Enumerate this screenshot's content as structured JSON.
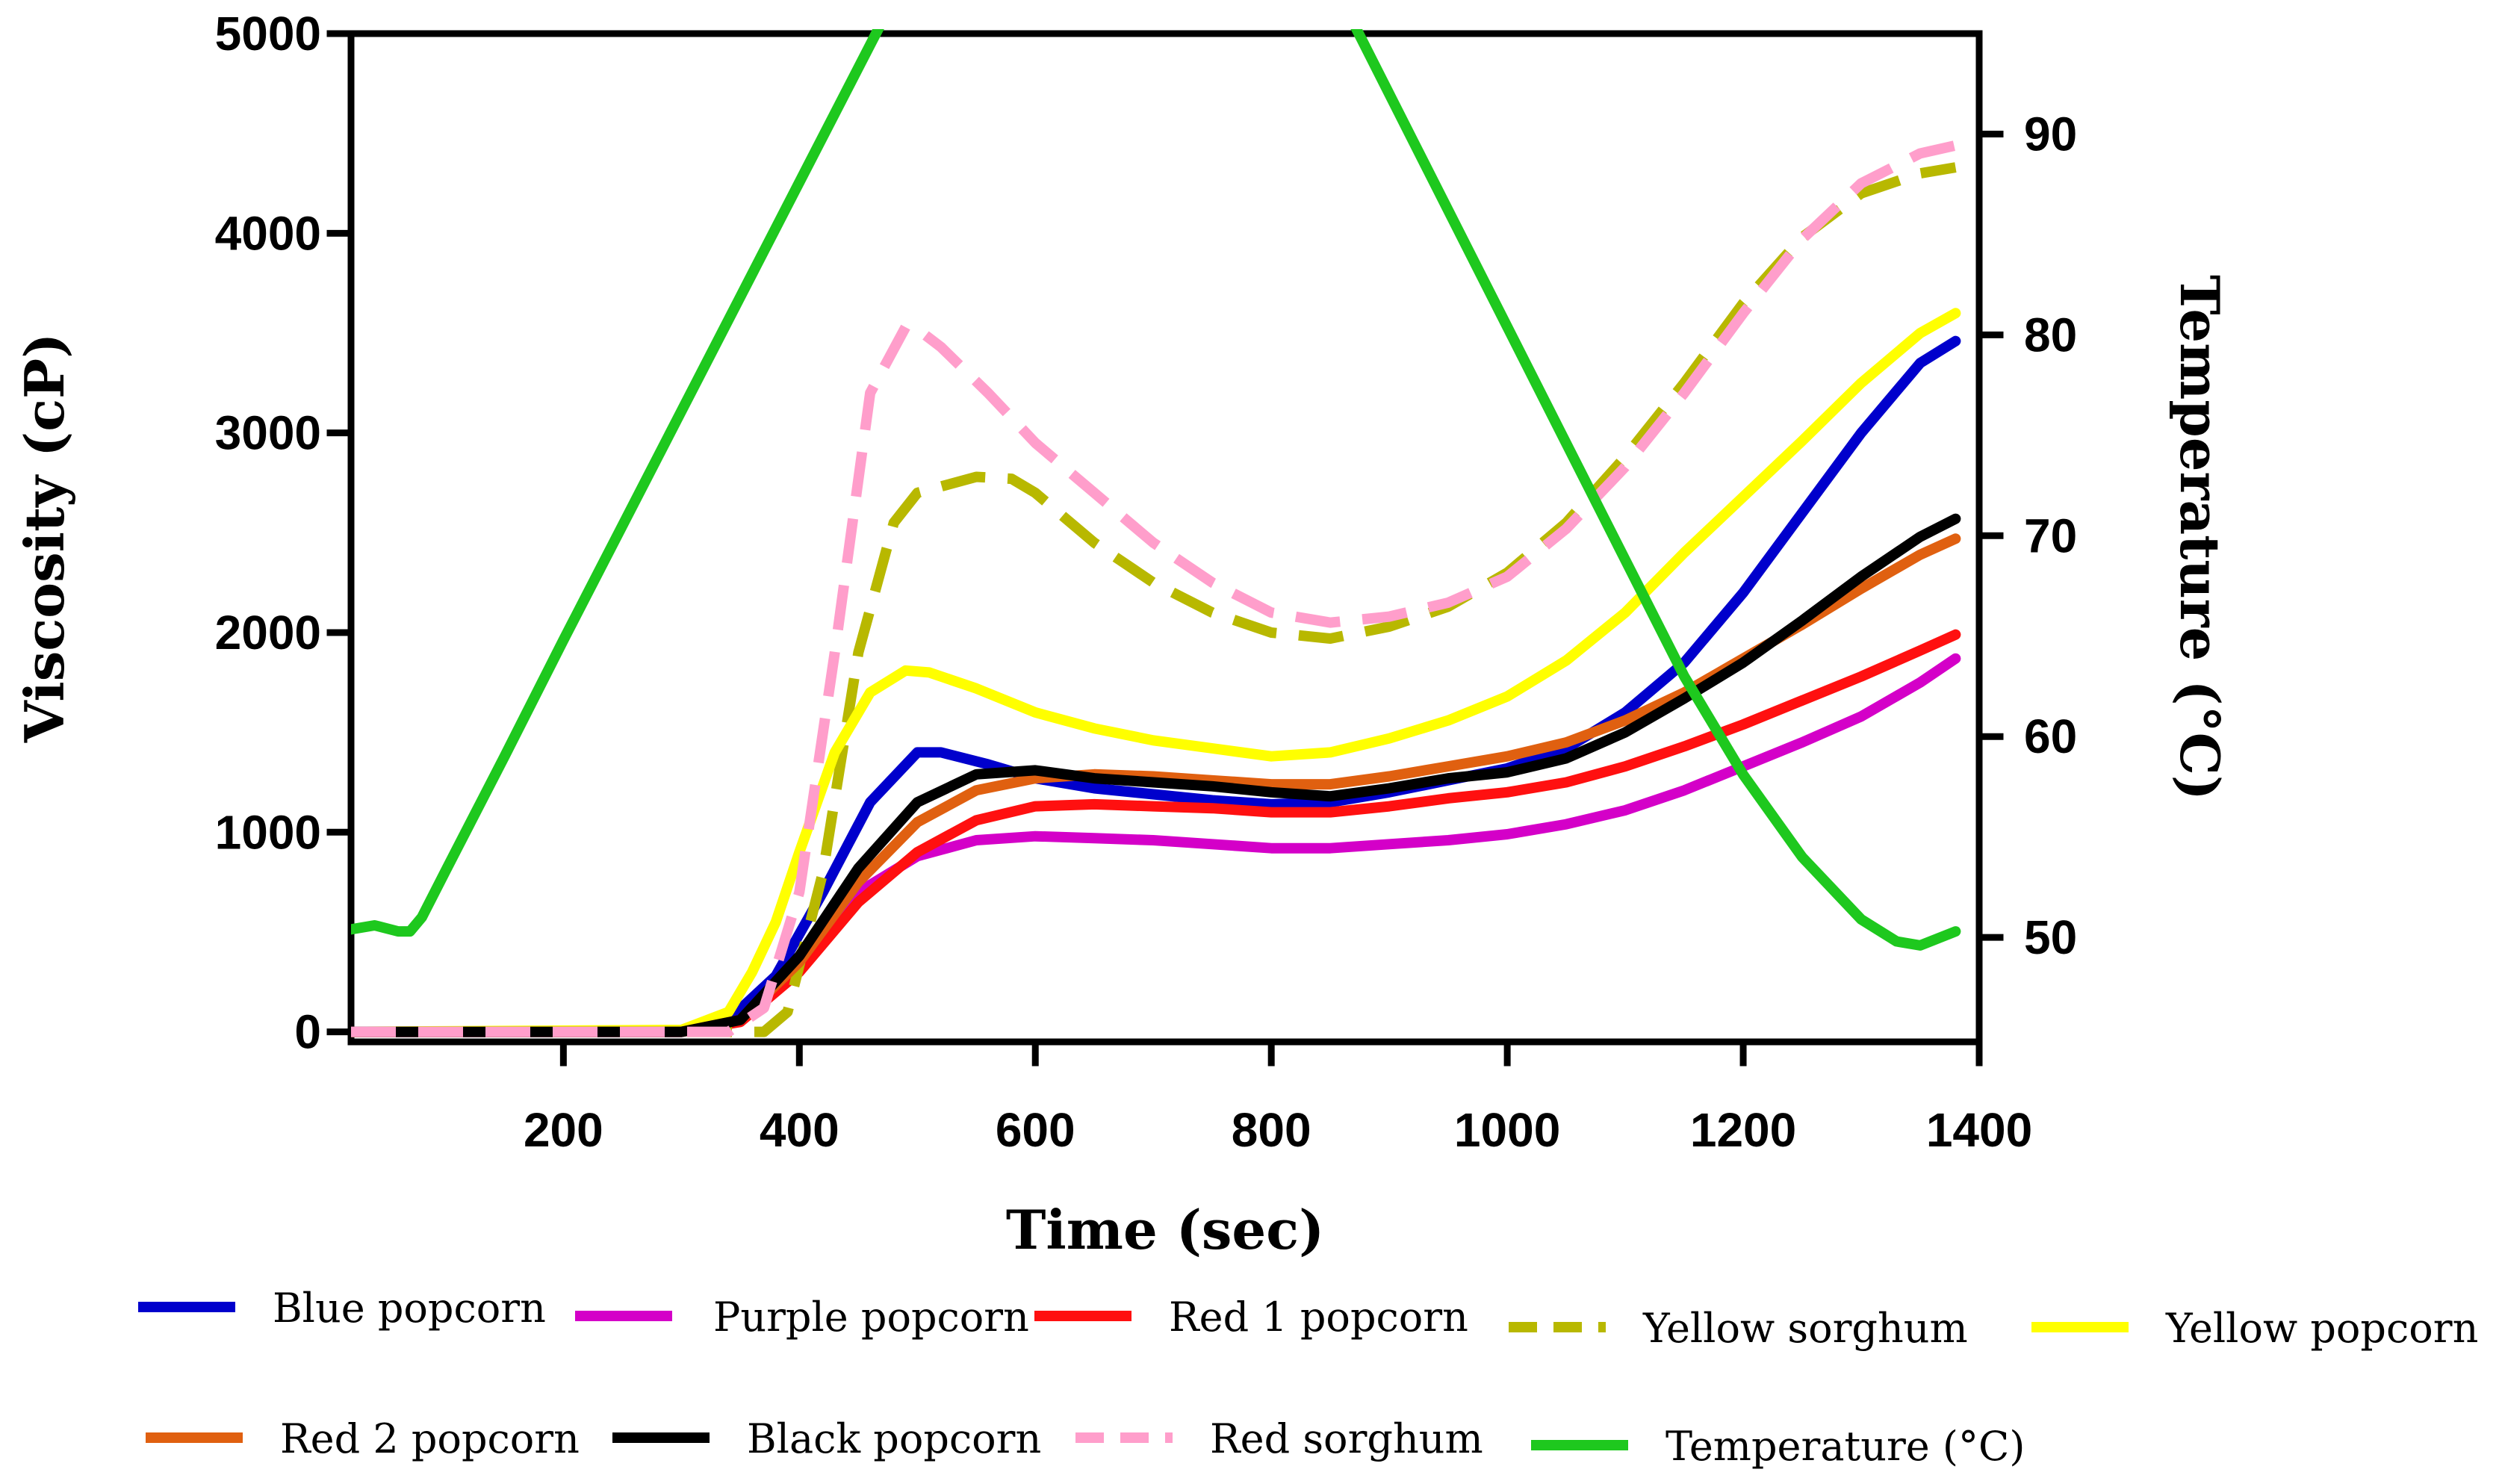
{
  "chart_data": {
    "type": "line",
    "xlabel": "Time (sec)",
    "ylabel": "Viscosity (cP)",
    "y2label": "Temperature (°C)",
    "xlim": [
      20,
      1400
    ],
    "ylim": [
      -50,
      5000
    ],
    "y2lim": [
      44.8,
      95
    ],
    "xticks": [
      200,
      400,
      600,
      800,
      1000,
      1200,
      1400
    ],
    "yticks": [
      0,
      1000,
      2000,
      3000,
      4000,
      5000
    ],
    "y2ticks": [
      50,
      60,
      70,
      80,
      90
    ],
    "grid": false,
    "legend_position": "bottom",
    "series": [
      {
        "name": "Blue popcorn",
        "axis": "left",
        "color": "#0000cc",
        "dash": "solid",
        "x": [
          20,
          300,
          340,
          380,
          420,
          460,
          500,
          520,
          560,
          600,
          650,
          700,
          750,
          800,
          850,
          900,
          950,
          1000,
          1050,
          1100,
          1150,
          1200,
          1250,
          1300,
          1350,
          1380
        ],
        "y": [
          0,
          0,
          60,
          280,
          700,
          1150,
          1400,
          1400,
          1340,
          1270,
          1220,
          1190,
          1160,
          1140,
          1150,
          1200,
          1260,
          1320,
          1420,
          1600,
          1850,
          2200,
          2600,
          3000,
          3350,
          3460
        ]
      },
      {
        "name": "Purple popcorn",
        "axis": "left",
        "color": "#d400c8",
        "dash": "solid",
        "x": [
          20,
          300,
          350,
          400,
          450,
          500,
          550,
          600,
          650,
          700,
          750,
          800,
          850,
          900,
          950,
          1000,
          1050,
          1100,
          1150,
          1200,
          1250,
          1300,
          1350,
          1380
        ],
        "y": [
          0,
          0,
          60,
          350,
          700,
          880,
          960,
          980,
          970,
          960,
          940,
          920,
          920,
          940,
          960,
          990,
          1040,
          1110,
          1210,
          1330,
          1450,
          1580,
          1750,
          1870
        ]
      },
      {
        "name": "Red 1 popcorn",
        "axis": "left",
        "color": "#ff1010",
        "dash": "solid",
        "x": [
          20,
          300,
          350,
          400,
          450,
          500,
          550,
          600,
          650,
          700,
          750,
          800,
          850,
          900,
          950,
          1000,
          1050,
          1100,
          1150,
          1200,
          1250,
          1300,
          1350,
          1380
        ],
        "y": [
          0,
          0,
          50,
          300,
          650,
          900,
          1060,
          1130,
          1140,
          1130,
          1120,
          1100,
          1100,
          1130,
          1170,
          1200,
          1250,
          1330,
          1430,
          1540,
          1660,
          1780,
          1910,
          1990
        ]
      },
      {
        "name": "Yellow sorghum",
        "axis": "left",
        "color": "#b8b800",
        "dash": "dashed",
        "x": [
          20,
          300,
          370,
          390,
          420,
          450,
          480,
          500,
          550,
          580,
          600,
          650,
          700,
          750,
          800,
          850,
          900,
          950,
          1000,
          1050,
          1100,
          1150,
          1200,
          1250,
          1300,
          1350,
          1380
        ],
        "y": [
          0,
          0,
          0,
          100,
          800,
          1900,
          2550,
          2700,
          2780,
          2770,
          2700,
          2450,
          2250,
          2100,
          2000,
          1970,
          2030,
          2130,
          2300,
          2550,
          2880,
          3250,
          3650,
          3980,
          4200,
          4300,
          4330
        ]
      },
      {
        "name": "Yellow popcorn",
        "axis": "left",
        "color": "#ffff00",
        "dash": "solid",
        "x": [
          20,
          300,
          340,
          360,
          380,
          400,
          430,
          460,
          490,
          510,
          550,
          600,
          650,
          700,
          750,
          800,
          850,
          900,
          950,
          1000,
          1050,
          1100,
          1150,
          1200,
          1250,
          1300,
          1350,
          1380
        ],
        "y": [
          0,
          10,
          100,
          300,
          550,
          900,
          1400,
          1700,
          1810,
          1800,
          1720,
          1600,
          1520,
          1460,
          1420,
          1380,
          1400,
          1470,
          1560,
          1680,
          1860,
          2100,
          2400,
          2680,
          2960,
          3250,
          3500,
          3600
        ]
      },
      {
        "name": "Red 2 popcorn",
        "axis": "left",
        "color": "#e06010",
        "dash": "solid",
        "x": [
          20,
          300,
          350,
          400,
          450,
          500,
          550,
          600,
          650,
          700,
          750,
          800,
          850,
          900,
          950,
          1000,
          1050,
          1100,
          1150,
          1200,
          1250,
          1300,
          1350,
          1380
        ],
        "y": [
          0,
          0,
          60,
          350,
          750,
          1050,
          1210,
          1270,
          1290,
          1280,
          1260,
          1240,
          1240,
          1280,
          1330,
          1380,
          1450,
          1560,
          1700,
          1870,
          2040,
          2220,
          2390,
          2470
        ]
      },
      {
        "name": "Black popcorn",
        "axis": "left",
        "color": "#000000",
        "dash": "solid",
        "x": [
          20,
          300,
          350,
          400,
          450,
          500,
          550,
          600,
          650,
          700,
          750,
          800,
          850,
          900,
          950,
          1000,
          1050,
          1100,
          1150,
          1200,
          1250,
          1300,
          1350,
          1380
        ],
        "y": [
          0,
          0,
          60,
          380,
          820,
          1150,
          1290,
          1310,
          1270,
          1250,
          1230,
          1200,
          1180,
          1220,
          1270,
          1300,
          1370,
          1500,
          1670,
          1850,
          2060,
          2280,
          2480,
          2570
        ]
      },
      {
        "name": "Red sorghum",
        "axis": "left",
        "color": "#ff9ecb",
        "dash": "dashed",
        "x": [
          20,
          300,
          340,
          370,
          400,
          430,
          460,
          490,
          500,
          520,
          560,
          600,
          650,
          700,
          750,
          800,
          850,
          900,
          950,
          1000,
          1050,
          1100,
          1150,
          1200,
          1250,
          1300,
          1350,
          1380
        ],
        "y": [
          0,
          0,
          0,
          120,
          700,
          1900,
          3200,
          3530,
          3520,
          3430,
          3200,
          2950,
          2700,
          2450,
          2250,
          2100,
          2050,
          2080,
          2150,
          2280,
          2520,
          2830,
          3200,
          3600,
          3970,
          4250,
          4400,
          4440
        ]
      },
      {
        "name": "Temperature (°C)",
        "axis": "right",
        "color": "#1ec81e",
        "dash": "solid",
        "x": [
          20,
          40,
          60,
          70,
          80,
          100,
          150,
          200,
          250,
          300,
          350,
          400,
          450,
          500,
          510,
          520,
          600,
          700,
          800,
          820,
          850,
          900,
          950,
          1000,
          1050,
          1100,
          1150,
          1200,
          1250,
          1300,
          1330,
          1350,
          1380
        ],
        "y": [
          50.4,
          50.6,
          50.3,
          50.3,
          51.0,
          53.3,
          59.0,
          64.8,
          70.5,
          76.2,
          81.9,
          87.6,
          93.3,
          99.0,
          100.2,
          99.8,
          100.0,
          100.0,
          100.0,
          99.9,
          97.8,
          92.0,
          86.2,
          80.4,
          74.6,
          68.8,
          63.0,
          58.1,
          54.0,
          50.9,
          49.8,
          49.6,
          50.3
        ]
      }
    ]
  }
}
